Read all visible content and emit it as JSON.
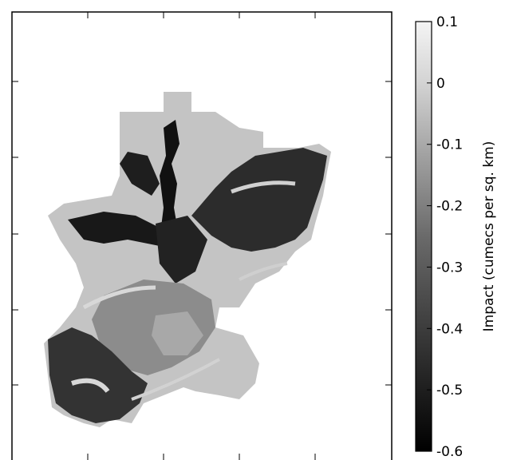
{
  "chart_data": {
    "type": "heatmap",
    "title": "",
    "xlabel": "",
    "ylabel": "",
    "colormap": "gray",
    "colorbar": {
      "label": "Impact (cumecs per sq. km)",
      "vmin": -0.6,
      "vmax": 0.1,
      "ticks": [
        0.1,
        0,
        -0.1,
        -0.2,
        -0.3,
        -0.4,
        -0.5,
        -0.6
      ],
      "tick_labels": [
        "0.1",
        "0",
        "-0.1",
        "-0.2",
        "-0.3",
        "-0.4",
        "-0.5",
        "-0.6"
      ]
    },
    "grid": false,
    "regions": [
      {
        "name": "background-catchment",
        "value": -0.1
      },
      {
        "name": "northeast-basin",
        "value": -0.45
      },
      {
        "name": "north-channel",
        "value": -0.55
      },
      {
        "name": "west-channel",
        "value": -0.5
      },
      {
        "name": "south-basin",
        "value": -0.25
      },
      {
        "name": "southwest-lobe",
        "value": -0.45
      },
      {
        "name": "light-streaks",
        "value": 0.0
      }
    ]
  }
}
